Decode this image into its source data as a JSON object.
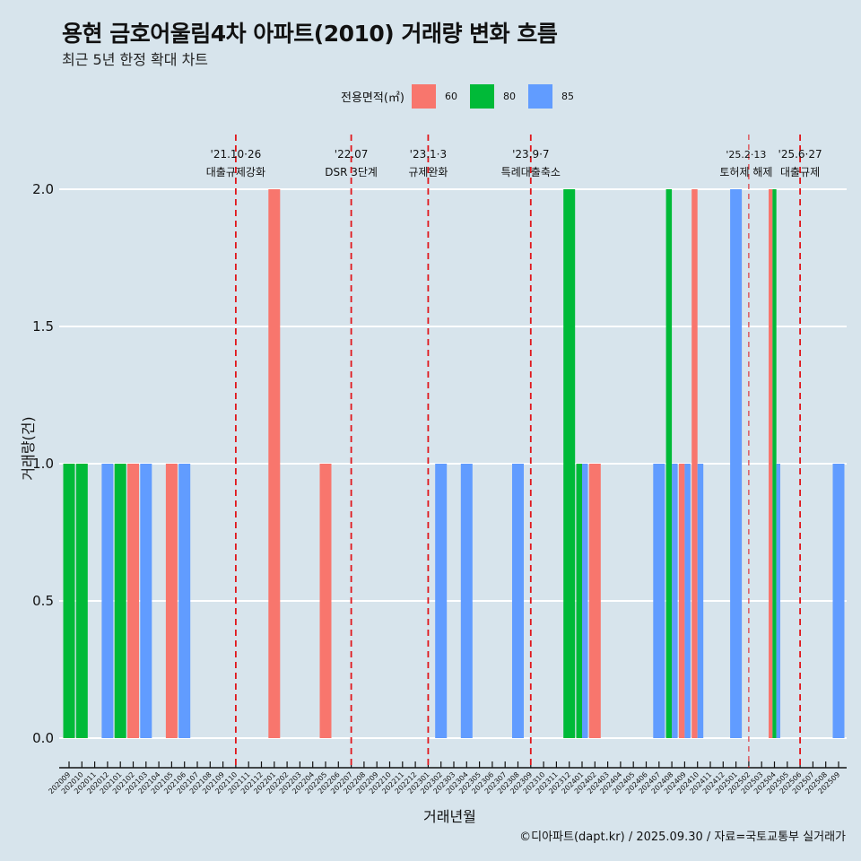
{
  "title": "용현 금호어울림4차 아파트(2010) 거래량 변화 흐름",
  "subtitle": "최근 5년 한정 확대 차트",
  "caption": "©디아파트(dapt.kr) / 2025.09.30 / 자료=국토교통부 실거래가",
  "legend": {
    "title": "전용면적(㎡)",
    "items": [
      {
        "label": "60",
        "color": "#f8766d"
      },
      {
        "label": "80",
        "color": "#00ba38"
      },
      {
        "label": "85",
        "color": "#619cff"
      }
    ]
  },
  "chart_data": {
    "type": "bar",
    "title": "용현 금호어울림4차 아파트(2010) 거래량 변화 흐름",
    "xlabel": "거래년월",
    "ylabel": "거래량(건)",
    "ylim": [
      0,
      2
    ],
    "yticks": [
      "0.0",
      "0.5",
      "1.0",
      "1.5",
      "2.0"
    ],
    "grid": true,
    "legend_position": "top",
    "categories": [
      "202009",
      "202010",
      "202011",
      "202012",
      "202101",
      "202102",
      "202103",
      "202104",
      "202105",
      "202106",
      "202107",
      "202108",
      "202109",
      "202110",
      "202111",
      "202112",
      "202201",
      "202202",
      "202203",
      "202204",
      "202205",
      "202206",
      "202207",
      "202208",
      "202209",
      "202210",
      "202211",
      "202212",
      "202301",
      "202302",
      "202303",
      "202304",
      "202305",
      "202306",
      "202307",
      "202308",
      "202309",
      "202310",
      "202311",
      "202312",
      "202401",
      "202402",
      "202403",
      "202404",
      "202405",
      "202406",
      "202407",
      "202408",
      "202409",
      "202410",
      "202411",
      "202412",
      "202501",
      "202502",
      "202503",
      "202504",
      "202505",
      "202506",
      "202507",
      "202508",
      "202509"
    ],
    "series_colors": {
      "60": "#f8766d",
      "80": "#00ba38",
      "85": "#619cff"
    },
    "bars": [
      {
        "month": "202009",
        "values": {
          "80": 1
        }
      },
      {
        "month": "202010",
        "values": {
          "80": 1
        }
      },
      {
        "month": "202012",
        "values": {
          "85": 1
        }
      },
      {
        "month": "202101",
        "values": {
          "80": 1
        }
      },
      {
        "month": "202102",
        "values": {
          "60": 1
        }
      },
      {
        "month": "202103",
        "values": {
          "85": 1
        }
      },
      {
        "month": "202105",
        "values": {
          "60": 1
        }
      },
      {
        "month": "202106",
        "values": {
          "85": 1
        }
      },
      {
        "month": "202201",
        "values": {
          "60": 2
        }
      },
      {
        "month": "202205",
        "values": {
          "60": 1
        }
      },
      {
        "month": "202302",
        "values": {
          "85": 1
        }
      },
      {
        "month": "202304",
        "values": {
          "85": 1
        }
      },
      {
        "month": "202308",
        "values": {
          "85": 1
        }
      },
      {
        "month": "202312",
        "values": {
          "80": 2
        }
      },
      {
        "month": "202401",
        "values": {
          "80": 1,
          "85": 1
        }
      },
      {
        "month": "202402",
        "values": {
          "60": 1
        }
      },
      {
        "month": "202407",
        "values": {
          "85": 1
        }
      },
      {
        "month": "202408",
        "values": {
          "80": 2,
          "85": 1
        }
      },
      {
        "month": "202409",
        "values": {
          "60": 1,
          "85": 1
        }
      },
      {
        "month": "202410",
        "values": {
          "60": 2,
          "85": 1
        }
      },
      {
        "month": "202501",
        "values": {
          "85": 2
        }
      },
      {
        "month": "202504",
        "values": {
          "60": 2,
          "80": 2,
          "85": 1
        }
      },
      {
        "month": "202509",
        "values": {
          "85": 1
        }
      }
    ],
    "annotations": [
      {
        "month": "202110",
        "date": "'21.10·26",
        "label": "대출규제강화",
        "style": "bold"
      },
      {
        "month": "202207",
        "date": "'22.07",
        "label": "DSR 3단계",
        "style": "bold"
      },
      {
        "month": "202301",
        "date": "'23.1·3",
        "label": "규제완화",
        "style": "bold"
      },
      {
        "month": "202309",
        "date": "'23.9·7",
        "label": "특례대출축소",
        "style": "bold"
      },
      {
        "month": "202502",
        "date": "'25.2·13",
        "label": "토허제 해제",
        "style": "thin"
      },
      {
        "month": "202506",
        "date": "'25.6·27",
        "label": "대출규제",
        "style": "bold"
      }
    ]
  }
}
